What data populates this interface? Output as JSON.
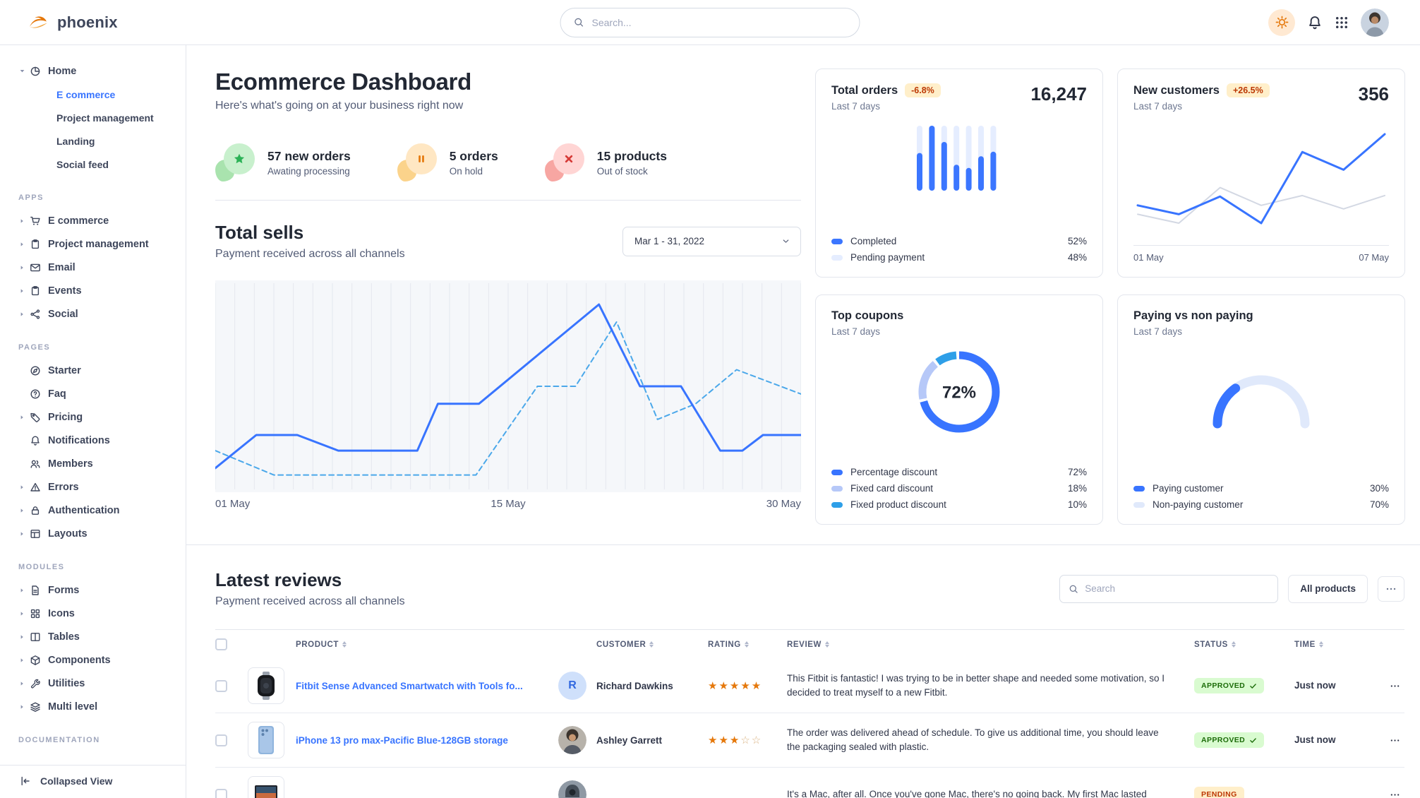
{
  "brand": {
    "name": "phoenix"
  },
  "topbar": {
    "search_placeholder": "Search...",
    "icons": [
      "sun-icon",
      "bell-icon",
      "apps-grid-icon",
      "user-avatar"
    ]
  },
  "sidebar": {
    "home_group": {
      "label": "Home",
      "icon": "pie-chart",
      "expanded": true,
      "children": [
        {
          "label": "E commerce",
          "active": true
        },
        {
          "label": "Project management",
          "active": false
        },
        {
          "label": "Landing",
          "active": false
        },
        {
          "label": "Social feed",
          "active": false
        }
      ]
    },
    "sections": [
      {
        "title": "APPS",
        "items": [
          {
            "icon": "shopping-cart",
            "label": "E commerce",
            "caret": true
          },
          {
            "icon": "clipboard",
            "label": "Project management",
            "caret": true
          },
          {
            "icon": "envelope",
            "label": "Email",
            "caret": true
          },
          {
            "icon": "clipboard",
            "label": "Events",
            "caret": true
          },
          {
            "icon": "share-nodes",
            "label": "Social",
            "caret": true
          }
        ]
      },
      {
        "title": "PAGES",
        "items": [
          {
            "icon": "compass",
            "label": "Starter",
            "caret": false
          },
          {
            "icon": "question-circle",
            "label": "Faq",
            "caret": false
          },
          {
            "icon": "tag",
            "label": "Pricing",
            "caret": true
          },
          {
            "icon": "bell",
            "label": "Notifications",
            "caret": false
          },
          {
            "icon": "users",
            "label": "Members",
            "caret": false
          },
          {
            "icon": "warning-triangle",
            "label": "Errors",
            "caret": true
          },
          {
            "icon": "lock",
            "label": "Authentication",
            "caret": true
          },
          {
            "icon": "layout",
            "label": "Layouts",
            "caret": true
          }
        ]
      },
      {
        "title": "MODULES",
        "items": [
          {
            "icon": "file-lines",
            "label": "Forms",
            "caret": true
          },
          {
            "icon": "grid",
            "label": "Icons",
            "caret": true
          },
          {
            "icon": "table-columns",
            "label": "Tables",
            "caret": true
          },
          {
            "icon": "cube",
            "label": "Components",
            "caret": true
          },
          {
            "icon": "wrench",
            "label": "Utilities",
            "caret": true
          },
          {
            "icon": "layers",
            "label": "Multi level",
            "caret": true
          }
        ]
      },
      {
        "title": "DOCUMENTATION",
        "items": []
      }
    ],
    "footer": {
      "icon": "collapse-left",
      "label": "Collapsed View"
    }
  },
  "page_header": {
    "title": "Ecommerce Dashboard",
    "subtitle": "Here's what's going on at your business right now"
  },
  "quick_stats": [
    {
      "icon": "star",
      "color": "green",
      "value": "57 new orders",
      "caption": "Awating processing"
    },
    {
      "icon": "pause",
      "color": "orange",
      "value": "5 orders",
      "caption": "On hold"
    },
    {
      "icon": "x",
      "color": "red",
      "value": "15 products",
      "caption": "Out of stock"
    }
  ],
  "total_sells": {
    "title": "Total sells",
    "subtitle": "Payment received across all channels",
    "date_filter": "Mar 1 - 31, 2022",
    "chart_data": {
      "type": "line",
      "title": "Total sells",
      "x_ticks": [
        "01 May",
        "15 May",
        "30 May"
      ],
      "grid": "vertical",
      "gridline_count": 31,
      "series": [
        {
          "name": "current",
          "style": "solid",
          "color": "#3874ff",
          "points": [
            [
              0,
              0.08
            ],
            [
              0.07,
              0.25
            ],
            [
              0.14,
              0.25
            ],
            [
              0.21,
              0.17
            ],
            [
              0.345,
              0.17
            ],
            [
              0.38,
              0.41
            ],
            [
              0.45,
              0.41
            ],
            [
              0.655,
              0.92
            ],
            [
              0.725,
              0.5
            ],
            [
              0.795,
              0.5
            ],
            [
              0.862,
              0.17
            ],
            [
              0.9,
              0.17
            ],
            [
              0.935,
              0.25
            ],
            [
              1,
              0.25
            ]
          ]
        },
        {
          "name": "previous",
          "style": "dashed",
          "color": "#4ba8ea",
          "points": [
            [
              0,
              0.17
            ],
            [
              0.1,
              0.045
            ],
            [
              0.445,
              0.045
            ],
            [
              0.55,
              0.5
            ],
            [
              0.615,
              0.5
            ],
            [
              0.685,
              0.83
            ],
            [
              0.755,
              0.33
            ],
            [
              0.82,
              0.41
            ],
            [
              0.89,
              0.585
            ],
            [
              1,
              0.46
            ]
          ]
        }
      ]
    }
  },
  "cards": {
    "total_orders": {
      "title": "Total orders",
      "badge": "-6.8%",
      "period": "Last 7 days",
      "value": "16,247",
      "chart_data": {
        "type": "bar",
        "bar_count": 7,
        "completed_fraction": [
          0.58,
          1.0,
          0.75,
          0.4,
          0.35,
          0.53,
          0.6
        ],
        "bar_color": "#3b76ff",
        "track_color": "#e5edff"
      },
      "legend": [
        {
          "label": "Completed",
          "value": "52%",
          "color": "#3b76ff"
        },
        {
          "label": "Pending payment",
          "value": "48%",
          "color": "#e5edff"
        }
      ]
    },
    "new_customers": {
      "title": "New customers",
      "badge": "+26.5%",
      "period": "Last 7 days",
      "value": "356",
      "chart_data": {
        "type": "line",
        "x_ticks": [
          "01 May",
          "07 May"
        ],
        "series": [
          {
            "name": "new customers",
            "color": "#3874ff",
            "values": [
              0.2,
              0.1,
              0.3,
              0.0,
              0.8,
              0.6,
              1.0
            ]
          },
          {
            "name": "baseline",
            "color": "#d3d8e3",
            "values": [
              0.1,
              0.0,
              0.4,
              0.2,
              0.31,
              0.16,
              0.31
            ]
          }
        ]
      }
    },
    "top_coupons": {
      "title": "Top coupons",
      "period": "Last 7 days",
      "center_label": "72%",
      "chart_data": {
        "type": "donut",
        "slices": [
          {
            "label": "Percentage discount",
            "value": 72,
            "color": "#3874ff"
          },
          {
            "label": "Fixed card discount",
            "value": 18,
            "color": "#b6c8f8"
          },
          {
            "label": "Fixed product discount",
            "value": 10,
            "color": "#2e9fe8"
          }
        ]
      },
      "legend": [
        {
          "label": "Percentage discount",
          "value": "72%",
          "color": "#3874ff"
        },
        {
          "label": "Fixed card discount",
          "value": "18%",
          "color": "#b6c8f8"
        },
        {
          "label": "Fixed product discount",
          "value": "10%",
          "color": "#2e9fe8"
        }
      ]
    },
    "paying": {
      "title": "Paying vs non paying",
      "period": "Last 7 days",
      "chart_data": {
        "type": "gauge",
        "slices": [
          {
            "label": "Paying customer",
            "value": 30,
            "color": "#3874ff"
          },
          {
            "label": "Non-paying customer",
            "value": 70,
            "color": "#e0e9fb"
          }
        ]
      },
      "legend": [
        {
          "label": "Paying customer",
          "value": "30%",
          "color": "#3874ff"
        },
        {
          "label": "Non-paying customer",
          "value": "70%",
          "color": "#e0e9fb"
        }
      ]
    }
  },
  "reviews": {
    "title": "Latest reviews",
    "subtitle": "Payment received across all channels",
    "search_placeholder": "Search",
    "filter_button": "All products",
    "columns": [
      "PRODUCT",
      "CUSTOMER",
      "RATING",
      "REVIEW",
      "STATUS",
      "TIME"
    ],
    "rows": [
      {
        "product": "Fitbit Sense Advanced Smartwatch with Tools fo...",
        "product_image": "smartwatch",
        "customer": "Richard Dawkins",
        "customer_avatar": "initial-R",
        "rating": 5,
        "review": "This Fitbit is fantastic! I was trying to be in better shape and needed some motivation, so I decided to treat myself to a new Fitbit.",
        "status": "APPROVED",
        "status_style": "success",
        "time": "Just now"
      },
      {
        "product": "iPhone 13 pro max-Pacific Blue-128GB storage",
        "product_image": "iphone",
        "customer": "Ashley Garrett",
        "customer_avatar": "photo-woman",
        "rating": 3,
        "review": "The order was delivered ahead of schedule. To give us additional time, you should leave the packaging sealed with plastic.",
        "status": "APPROVED",
        "status_style": "success",
        "time": "Just now"
      },
      {
        "product": "",
        "product_image": "macbook",
        "customer": "",
        "customer_avatar": "photo-hood",
        "rating": null,
        "review": "It's a Mac, after all. Once you've gone Mac, there's no going back. My first Mac lasted",
        "status": "PENDING",
        "status_style": "warning",
        "time": ""
      }
    ]
  }
}
